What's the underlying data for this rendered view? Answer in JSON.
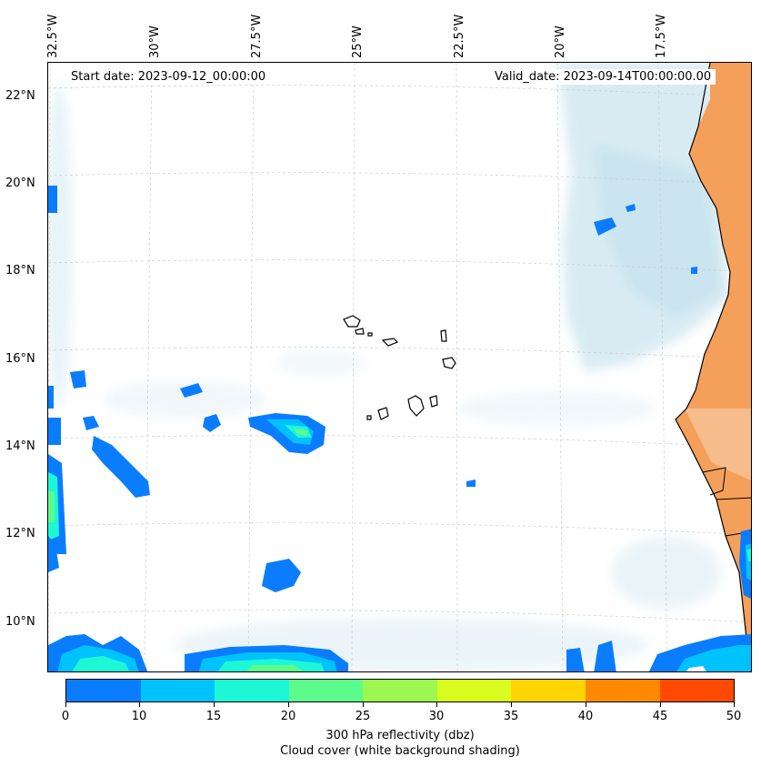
{
  "map": {
    "start_date": "Start date: 2023-09-12_00:00:00",
    "valid_date": "Valid_date: 2023-09-14T00:00:00.00",
    "lon_labels": [
      "32.5°W",
      "30°W",
      "27.5°W",
      "25°W",
      "22.5°W",
      "20°W",
      "17.5°W"
    ],
    "lat_labels": [
      "22°N",
      "20°N",
      "18°N",
      "16°N",
      "14°N",
      "12°N",
      "10°N"
    ],
    "region": "Cape Verde / West Africa coast",
    "colors": {
      "land": "#f4a05a",
      "cloud": "#bfe0ec",
      "coastline": "#000000",
      "gridline": "#c8c8c8"
    }
  },
  "colorbar": {
    "ticks": [
      "0",
      "10",
      "15",
      "20",
      "25",
      "30",
      "35",
      "40",
      "45",
      "50"
    ],
    "colors": [
      "#0a7dff",
      "#00c2ff",
      "#1ef7d6",
      "#5cfc8c",
      "#9cf750",
      "#d9fd1e",
      "#ffd400",
      "#ff8a00",
      "#ff4a00"
    ],
    "title_line1": "300 hPa reflectivity (dbz)",
    "title_line2": "Cloud cover (white background shading)"
  }
}
